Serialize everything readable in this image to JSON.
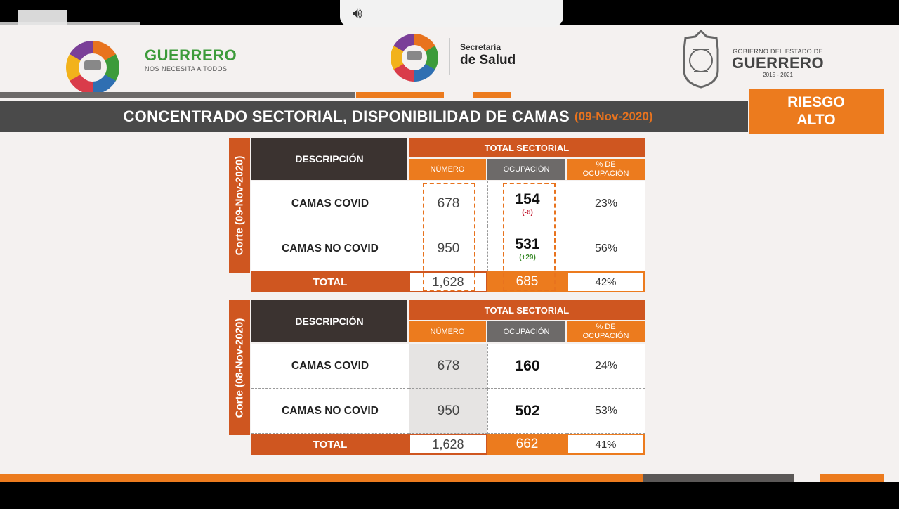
{
  "header": {
    "guerrero_logo_text": "GUERRERO",
    "guerrero_logo_tagline": "NOS NECESITA A TODOS",
    "salud_line1": "Secretaría",
    "salud_line2": "de Salud",
    "gobierno_line1": "GOBIERNO DEL ESTADO DE",
    "gobierno_line2": "GUERRERO",
    "gobierno_years": "2015 - 2021"
  },
  "title": {
    "text": "CONCENTRADO SECTORIAL, DISPONIBILIDAD DE CAMAS",
    "date": "(09-Nov-2020)"
  },
  "risk": {
    "line1": "RIESGO",
    "line2": "ALTO"
  },
  "colors": {
    "orange": "#ec7b1e",
    "dark_orange": "#cf5620",
    "dark_gray": "#4a4a4a"
  },
  "tables": [
    {
      "side_label": "Corte (09-Nov-2020)",
      "desc_header": "DESCRIPCIÓN",
      "total_header": "TOTAL SECTORIAL",
      "col_numero": "NÚMERO",
      "col_ocupacion": "OCUPACIÓN",
      "col_pct_1": "% DE",
      "col_pct_2": "OCUPACIÓN",
      "rows": [
        {
          "desc": "CAMAS COVID",
          "numero": "678",
          "ocupacion": "154",
          "delta": "(-6)",
          "pct": "23%"
        },
        {
          "desc": "CAMAS NO COVID",
          "numero": "950",
          "ocupacion": "531",
          "delta": "(+29)",
          "pct": "56%"
        }
      ],
      "total": {
        "label": "TOTAL",
        "numero": "1,628",
        "ocupacion": "685",
        "pct": "42%"
      }
    },
    {
      "side_label": "Corte (08-Nov-2020)",
      "desc_header": "DESCRIPCIÓN",
      "total_header": "TOTAL SECTORIAL",
      "col_numero": "NÚMERO",
      "col_ocupacion": "OCUPACIÓN",
      "col_pct_1": "% DE",
      "col_pct_2": "OCUPACIÓN",
      "rows": [
        {
          "desc": "CAMAS COVID",
          "numero": "678",
          "ocupacion": "160",
          "pct": "24%"
        },
        {
          "desc": "CAMAS NO COVID",
          "numero": "950",
          "ocupacion": "502",
          "pct": "53%"
        }
      ],
      "total": {
        "label": "TOTAL",
        "numero": "1,628",
        "ocupacion": "662",
        "pct": "41%"
      }
    }
  ],
  "player": {
    "audio_icon": "speaker-volume-icon"
  }
}
